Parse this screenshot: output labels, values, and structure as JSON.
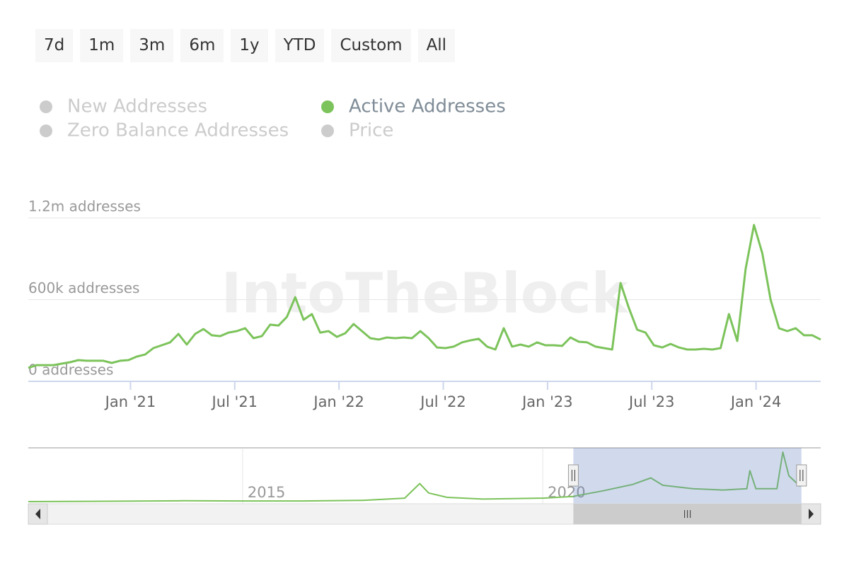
{
  "range_selector": {
    "buttons": [
      "7d",
      "1m",
      "3m",
      "6m",
      "1y",
      "YTD",
      "Custom",
      "All"
    ]
  },
  "chart_data": [
    {
      "type": "line",
      "watermark": "IntoTheBlock",
      "series": [
        {
          "name": "New Addresses",
          "color": "#5b8fd6",
          "visible": false
        },
        {
          "name": "Active Addresses",
          "color": "#7cc35b",
          "visible": true,
          "values": [
            99000,
            119000,
            119000,
            119000,
            130000,
            140000,
            156000,
            151000,
            151000,
            151000,
            135000,
            151000,
            156000,
            182000,
            197000,
            244000,
            265000,
            286000,
            348000,
            270000,
            348000,
            384000,
            338000,
            332000,
            358000,
            369000,
            390000,
            317000,
            332000,
            416000,
            410000,
            473000,
            618000,
            452000,
            494000,
            358000,
            369000,
            327000,
            353000,
            421000,
            369000,
            317000,
            307000,
            322000,
            317000,
            322000,
            317000,
            369000,
            317000,
            249000,
            244000,
            255000,
            286000,
            301000,
            312000,
            255000,
            234000,
            390000,
            255000,
            270000,
            255000,
            286000,
            265000,
            265000,
            260000,
            322000,
            291000,
            286000,
            255000,
            244000,
            234000,
            722000,
            540000,
            379000,
            358000,
            265000,
            249000,
            275000,
            249000,
            234000,
            234000,
            239000,
            234000,
            244000,
            494000,
            296000,
            826000,
            1148000,
            940000,
            597000,
            390000,
            369000,
            390000,
            338000,
            338000,
            307000
          ]
        },
        {
          "name": "Zero Balance Addresses",
          "color": "#e8a33d",
          "visible": false
        },
        {
          "name": "Price",
          "color": "#555555",
          "visible": false
        }
      ],
      "x": [
        2020.51,
        2020.55,
        2020.59,
        2020.63,
        2020.67,
        2020.71,
        2020.75,
        2020.79,
        2020.83,
        2020.87,
        2020.91,
        2020.95,
        2020.99,
        2021.03,
        2021.07,
        2021.11,
        2021.15,
        2021.19,
        2021.23,
        2021.27,
        2021.31,
        2021.35,
        2021.39,
        2021.43,
        2021.47,
        2021.51,
        2021.55,
        2021.59,
        2021.63,
        2021.67,
        2021.71,
        2021.75,
        2021.79,
        2021.83,
        2021.87,
        2021.91,
        2021.95,
        2021.99,
        2022.03,
        2022.07,
        2022.11,
        2022.15,
        2022.19,
        2022.23,
        2022.27,
        2022.31,
        2022.35,
        2022.39,
        2022.43,
        2022.47,
        2022.51,
        2022.55,
        2022.59,
        2022.63,
        2022.67,
        2022.71,
        2022.75,
        2022.79,
        2022.83,
        2022.87,
        2022.91,
        2022.95,
        2022.99,
        2023.03,
        2023.07,
        2023.11,
        2023.15,
        2023.19,
        2023.23,
        2023.27,
        2023.31,
        2023.35,
        2023.39,
        2023.43,
        2023.47,
        2023.51,
        2023.55,
        2023.59,
        2023.63,
        2023.67,
        2023.71,
        2023.75,
        2023.79,
        2023.83,
        2023.87,
        2023.91,
        2023.95,
        2023.99,
        2024.03,
        2024.07,
        2024.11,
        2024.15,
        2024.19,
        2024.23,
        2024.27,
        2024.31
      ],
      "xlim": [
        2020.51,
        2024.31
      ],
      "xticks": [
        {
          "value": 2021,
          "label": "Jan '21"
        },
        {
          "value": 2021.5,
          "label": "Jul '21"
        },
        {
          "value": 2022,
          "label": "Jan '22"
        },
        {
          "value": 2022.5,
          "label": "Jul '22"
        },
        {
          "value": 2023,
          "label": "Jan '23"
        },
        {
          "value": 2023.5,
          "label": "Jul '23"
        },
        {
          "value": 2024,
          "label": "Jan '24"
        }
      ],
      "ylim": [
        0,
        1200000
      ],
      "yticks": [
        {
          "value": 0,
          "label": "0 addresses"
        },
        {
          "value": 600000,
          "label": "600k addresses"
        },
        {
          "value": 1200000,
          "label": "1.2m addresses"
        }
      ],
      "grid": true
    },
    {
      "type": "line",
      "x": [
        2011.43,
        2013,
        2014,
        2015,
        2016,
        2017,
        2017.7,
        2017.95,
        2018.1,
        2018.4,
        2019,
        2019.5,
        2020,
        2020.5,
        2021,
        2021.5,
        2021.8,
        2022,
        2022.5,
        2023,
        2023.4,
        2023.45,
        2023.55,
        2023.9,
        2024.0,
        2024.1,
        2024.29
      ],
      "values": [
        0,
        10000,
        20000,
        15000,
        15000,
        30000,
        80000,
        420000,
        200000,
        100000,
        60000,
        70000,
        80000,
        120000,
        250000,
        400000,
        550000,
        380000,
        300000,
        270000,
        300000,
        720000,
        300000,
        300000,
        1150000,
        600000,
        350000
      ],
      "color": "#7cc35b",
      "xlim": [
        2011.43,
        2024.63
      ],
      "ylim": [
        0,
        1200000
      ],
      "xticks": [
        2015,
        2020
      ]
    }
  ]
}
